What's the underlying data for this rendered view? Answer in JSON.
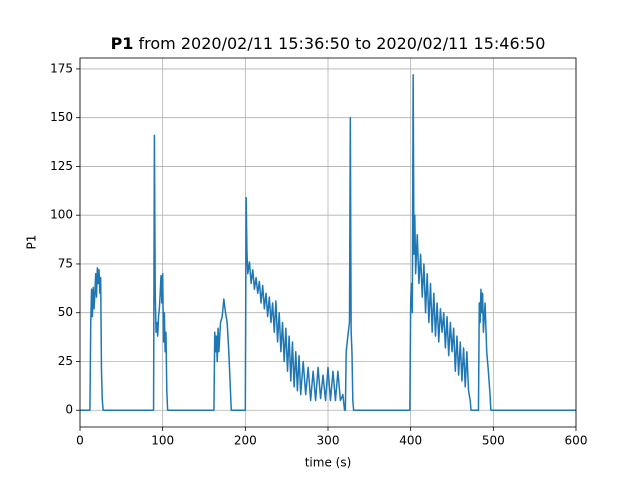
{
  "chart_data": {
    "type": "line",
    "title": {
      "bold": "P1",
      "rest": "from 2020/02/11 15:36:50 to 2020/02/11 15:46:50"
    },
    "x_label": "time (s)",
    "y_label": "P1",
    "xlim": [
      0,
      600
    ],
    "ylim": [
      -8.6,
      180.6
    ],
    "xticks": [
      0,
      100,
      200,
      300,
      400,
      500,
      600
    ],
    "yticks": [
      0,
      25,
      50,
      75,
      100,
      125,
      150,
      175
    ],
    "grid": true,
    "color": "#1f77b4",
    "x": [
      0,
      12,
      13,
      14,
      15,
      16,
      17,
      18,
      19,
      20,
      21,
      22,
      23,
      24,
      25,
      26,
      27,
      28,
      89,
      90,
      91,
      92,
      93,
      94,
      95,
      96,
      97,
      98,
      99,
      100,
      101,
      102,
      103,
      104,
      105,
      106,
      162,
      163,
      164,
      165,
      166,
      167,
      168,
      170,
      172,
      174,
      176,
      178,
      180,
      182,
      183,
      200,
      201,
      202,
      203,
      205,
      207,
      209,
      211,
      213,
      215,
      217,
      219,
      221,
      223,
      225,
      227,
      229,
      231,
      233,
      235,
      237,
      239,
      241,
      243,
      245,
      247,
      249,
      251,
      253,
      255,
      257,
      259,
      261,
      263,
      265,
      267,
      270,
      273,
      276,
      279,
      282,
      285,
      288,
      291,
      294,
      297,
      300,
      303,
      306,
      309,
      312,
      315,
      318,
      320,
      321,
      322,
      324,
      326,
      327,
      328,
      329,
      330,
      331,
      399,
      400,
      401,
      402,
      403,
      404,
      405,
      406,
      408,
      410,
      412,
      414,
      416,
      418,
      420,
      422,
      424,
      426,
      428,
      430,
      432,
      434,
      436,
      438,
      440,
      442,
      444,
      446,
      448,
      450,
      452,
      454,
      456,
      458,
      460,
      462,
      464,
      466,
      468,
      470,
      472,
      473,
      482,
      483,
      484,
      485,
      486,
      487,
      488,
      490,
      492,
      494,
      496,
      497,
      600
    ],
    "values": [
      0,
      0,
      45,
      62,
      48,
      63,
      52,
      60,
      70,
      58,
      73,
      65,
      72,
      60,
      68,
      20,
      5,
      0,
      0,
      141,
      60,
      40,
      45,
      38,
      48,
      52,
      60,
      69,
      55,
      70,
      35,
      50,
      30,
      40,
      10,
      0,
      0,
      40,
      30,
      38,
      25,
      42,
      30,
      45,
      48,
      57,
      50,
      45,
      30,
      10,
      0,
      0,
      109,
      80,
      70,
      76,
      65,
      72,
      62,
      68,
      60,
      66,
      55,
      64,
      52,
      60,
      48,
      58,
      45,
      55,
      40,
      56,
      35,
      50,
      30,
      45,
      25,
      42,
      20,
      38,
      15,
      35,
      12,
      30,
      10,
      28,
      8,
      25,
      8,
      22,
      5,
      20,
      5,
      22,
      6,
      18,
      5,
      22,
      5,
      20,
      5,
      20,
      5,
      8,
      0,
      0,
      30,
      38,
      45,
      150,
      40,
      30,
      5,
      0,
      0,
      55,
      65,
      50,
      172,
      80,
      100,
      70,
      90,
      65,
      80,
      58,
      75,
      50,
      70,
      45,
      65,
      40,
      60,
      38,
      55,
      35,
      52,
      40,
      50,
      32,
      48,
      28,
      45,
      30,
      42,
      20,
      38,
      18,
      35,
      15,
      32,
      12,
      30,
      10,
      5,
      0,
      0,
      55,
      45,
      62,
      50,
      60,
      40,
      55,
      30,
      20,
      8,
      0,
      0
    ]
  }
}
